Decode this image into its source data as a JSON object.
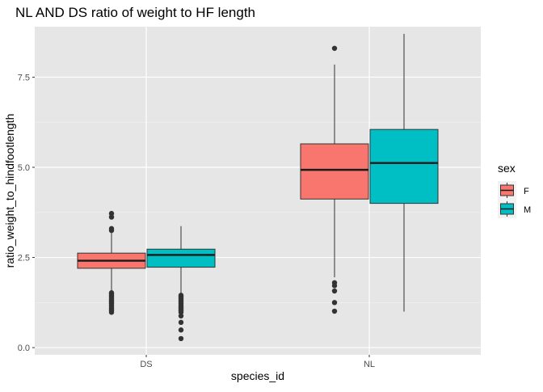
{
  "chart_data": {
    "type": "box",
    "title": "NL AND DS ratio of weight to HF length",
    "xlabel": "species_id",
    "ylabel": "ratio_weight_to_hindfootlength",
    "categories": [
      "DS",
      "NL"
    ],
    "ylim": [
      -0.2,
      8.9
    ],
    "yticks": [
      0.0,
      2.5,
      5.0,
      7.5
    ],
    "ytick_labels": [
      "0.0",
      "2.5",
      "5.0",
      "7.5"
    ],
    "grid": true,
    "background": "#e6e6e6",
    "legend": {
      "title": "sex",
      "position": "right",
      "entries": [
        {
          "label": "F",
          "color": "#f8766d"
        },
        {
          "label": "M",
          "color": "#00bfc4"
        }
      ]
    },
    "series": [
      {
        "name": "F",
        "color": "#f8766d",
        "boxes": [
          {
            "category": "DS",
            "lower_whisker": 1.57,
            "q1": 2.2,
            "median": 2.41,
            "q3": 2.62,
            "upper_whisker": 3.22,
            "outliers": [
              3.72,
              3.62,
              3.3,
              3.25,
              1.52,
              1.48,
              1.45,
              1.42,
              1.38,
              1.35,
              1.32,
              1.28,
              1.25,
              1.22,
              1.18,
              1.15,
              1.1,
              1.06,
              1.02,
              0.98
            ]
          },
          {
            "category": "NL",
            "lower_whisker": 1.95,
            "q1": 4.12,
            "median": 4.93,
            "q3": 5.65,
            "upper_whisker": 7.85,
            "outliers": [
              8.3,
              1.8,
              1.72,
              1.57,
              1.25,
              1.01
            ]
          }
        ]
      },
      {
        "name": "M",
        "color": "#00bfc4",
        "boxes": [
          {
            "category": "DS",
            "lower_whisker": 1.5,
            "q1": 2.23,
            "median": 2.57,
            "q3": 2.73,
            "upper_whisker": 3.37,
            "outliers": [
              1.45,
              1.42,
              1.38,
              1.34,
              1.3,
              1.26,
              1.22,
              1.18,
              1.14,
              1.1,
              1.06,
              1.02,
              0.98,
              0.88,
              0.7,
              0.49,
              0.25
            ]
          },
          {
            "category": "NL",
            "lower_whisker": 1.0,
            "q1": 4.0,
            "median": 5.12,
            "q3": 6.05,
            "upper_whisker": 8.7,
            "outliers": []
          }
        ]
      }
    ]
  }
}
